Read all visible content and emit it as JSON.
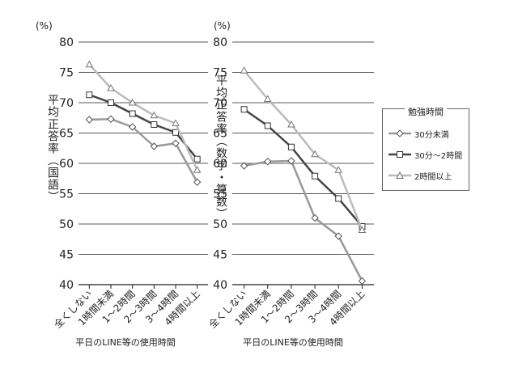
{
  "chart_data": [
    {
      "type": "line",
      "unit": "(%)",
      "ylabel": "平均正答率（国語）",
      "xlabel": "平日のLINE等の使用時間",
      "ylim": [
        40,
        80
      ],
      "yticks": [
        40,
        45,
        50,
        55,
        60,
        65,
        70,
        75,
        80
      ],
      "grid": true,
      "categories": [
        "全くしない",
        "1時間未満",
        "1～2時間",
        "2～3時間",
        "3～4時間",
        "4時間以上"
      ],
      "series": [
        {
          "name": "30分未満",
          "marker": "diamond",
          "color": "#999999",
          "values": [
            67.2,
            67.3,
            66.0,
            62.8,
            63.3,
            56.9
          ]
        },
        {
          "name": "30分～2時間",
          "marker": "square",
          "color": "#444444",
          "values": [
            71.3,
            70.0,
            68.2,
            66.4,
            65.1,
            60.7
          ]
        },
        {
          "name": "2時間以上",
          "marker": "triangle",
          "color": "#bbbbbb",
          "values": [
            76.3,
            72.4,
            70.0,
            67.9,
            66.6,
            58.9
          ]
        }
      ]
    },
    {
      "type": "line",
      "unit": "(%)",
      "ylabel": "平均正答率（数学・算数）",
      "xlabel": "平日のLINE等の使用時間",
      "ylim": [
        40,
        80
      ],
      "yticks": [
        40,
        45,
        50,
        55,
        60,
        65,
        70,
        75,
        80
      ],
      "grid": true,
      "categories": [
        "全くしない",
        "1時間未満",
        "1～2時間",
        "2～3時間",
        "3～4時間",
        "4時間以上"
      ],
      "series": [
        {
          "name": "30分未満",
          "marker": "diamond",
          "color": "#999999",
          "values": [
            59.6,
            60.3,
            60.4,
            51.0,
            48.0,
            40.6
          ]
        },
        {
          "name": "30分～2時間",
          "marker": "square",
          "color": "#444444",
          "values": [
            68.9,
            66.2,
            62.7,
            57.9,
            54.2,
            49.6
          ]
        },
        {
          "name": "2時間以上",
          "marker": "triangle",
          "color": "#bbbbbb",
          "values": [
            75.3,
            70.6,
            66.4,
            61.5,
            58.9,
            49.0
          ]
        }
      ]
    }
  ],
  "legend": {
    "title": "勉強時間",
    "placement": "right",
    "items": [
      "30分未満",
      "30分～2時間",
      "2時間以上"
    ]
  }
}
